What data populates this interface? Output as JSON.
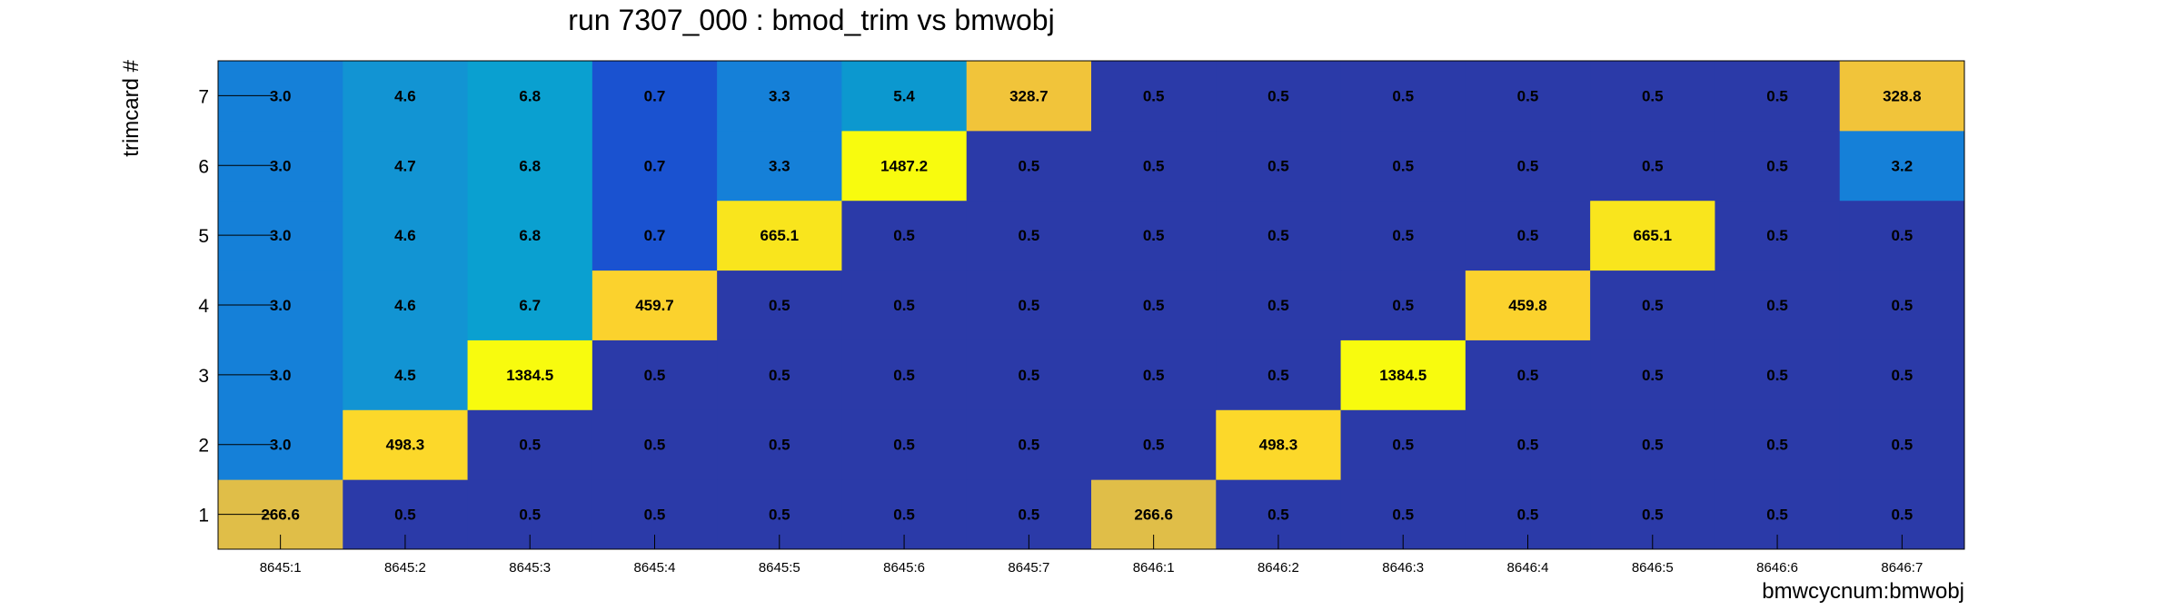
{
  "chart_data": {
    "type": "heatmap",
    "title": "run 7307_000 : bmod_trim vs bmwobj",
    "xlabel": "bmwcycnum:bmwobj",
    "ylabel": "trimcard #",
    "x_categories": [
      "8645:1",
      "8645:2",
      "8645:3",
      "8645:4",
      "8645:5",
      "8645:6",
      "8645:7",
      "8646:1",
      "8646:2",
      "8646:3",
      "8646:4",
      "8646:5",
      "8646:6",
      "8646:7"
    ],
    "y_categories": [
      "1",
      "2",
      "3",
      "4",
      "5",
      "6",
      "7"
    ],
    "values": [
      [
        266.6,
        0.5,
        0.5,
        0.5,
        0.5,
        0.5,
        0.5,
        266.6,
        0.5,
        0.5,
        0.5,
        0.5,
        0.5,
        0.5
      ],
      [
        3.0,
        498.3,
        0.5,
        0.5,
        0.5,
        0.5,
        0.5,
        0.5,
        498.3,
        0.5,
        0.5,
        0.5,
        0.5,
        0.5
      ],
      [
        3.0,
        4.5,
        1384.5,
        0.5,
        0.5,
        0.5,
        0.5,
        0.5,
        0.5,
        1384.5,
        0.5,
        0.5,
        0.5,
        0.5
      ],
      [
        3.0,
        4.6,
        6.7,
        459.7,
        0.5,
        0.5,
        0.5,
        0.5,
        0.5,
        0.5,
        459.8,
        0.5,
        0.5,
        0.5
      ],
      [
        3.0,
        4.6,
        6.8,
        0.7,
        665.1,
        0.5,
        0.5,
        0.5,
        0.5,
        0.5,
        0.5,
        665.1,
        0.5,
        0.5
      ],
      [
        3.0,
        4.7,
        6.8,
        0.7,
        3.3,
        1487.2,
        0.5,
        0.5,
        0.5,
        0.5,
        0.5,
        0.5,
        0.5,
        3.2
      ],
      [
        3.0,
        4.6,
        6.8,
        0.7,
        3.3,
        5.4,
        328.7,
        0.5,
        0.5,
        0.5,
        0.5,
        0.5,
        0.5,
        328.8
      ]
    ],
    "colors": {
      "low": "#2b3aa8",
      "level_0p7": "#1a52d0",
      "level_3": "#1580d8",
      "level_4p5": "#1294d3",
      "level_6p8": "#0aa0d0",
      "level_5p4": "#0c98cf",
      "mid_266": "#e0be48",
      "mid_328": "#f1c43a",
      "mid_459": "#fbd22d",
      "mid_498": "#fcd82a",
      "high_665": "#f9e51d",
      "max": "#f8fb0e"
    },
    "legend": "none",
    "grid": false
  }
}
